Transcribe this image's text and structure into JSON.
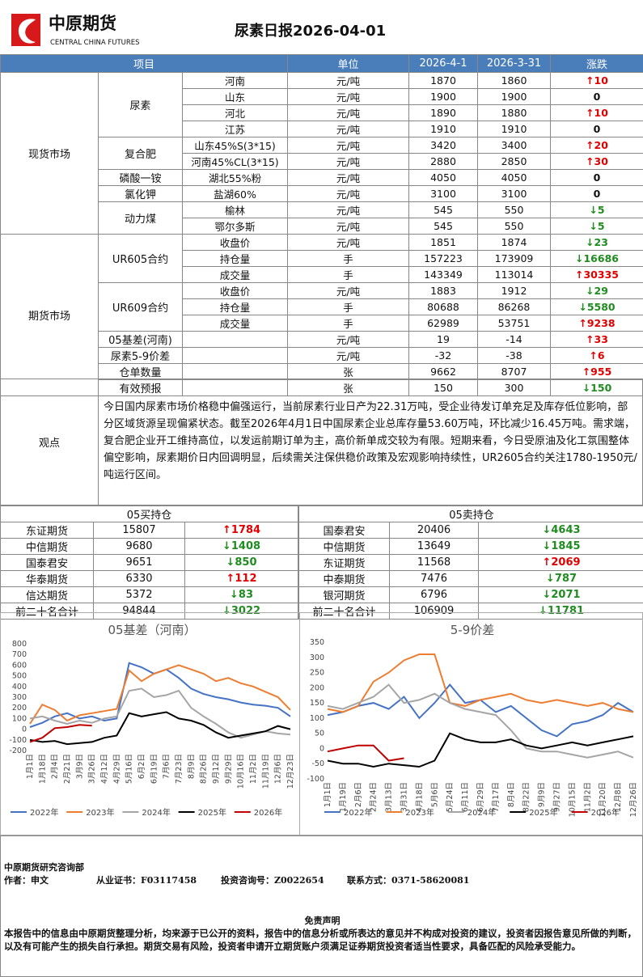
{
  "header": {
    "logo_cn": "中原期货",
    "logo_en": "CENTRAL CHINA FUTURES",
    "title": "尿素日报2026-04-01"
  },
  "table": {
    "columns": [
      "项目",
      "单位",
      "2026-4-1",
      "2026-3-31",
      "涨跌"
    ],
    "sections": [
      {
        "label": "现货市场",
        "groups": [
          {
            "label": "尿素",
            "rows": [
              {
                "item": "河南",
                "unit": "元/吨",
                "d1": 1870,
                "d2": 1860,
                "chg": "↑10"
              },
              {
                "item": "山东",
                "unit": "元/吨",
                "d1": 1900,
                "d2": 1900,
                "chg": 0
              },
              {
                "item": "河北",
                "unit": "元/吨",
                "d1": 1890,
                "d2": 1880,
                "chg": "↑10"
              },
              {
                "item": "江苏",
                "unit": "元/吨",
                "d1": 1910,
                "d2": 1910,
                "chg": 0
              }
            ]
          },
          {
            "label": "复合肥",
            "rows": [
              {
                "item": "山东45%S(3*15)",
                "unit": "元/吨",
                "d1": 3420,
                "d2": 3400,
                "chg": "↑20"
              },
              {
                "item": "河南45%CL(3*15)",
                "unit": "元/吨",
                "d1": 2880,
                "d2": 2850,
                "chg": "↑30"
              }
            ]
          },
          {
            "label": "磷酸一铵",
            "rows": [
              {
                "item": "湖北55%粉",
                "unit": "元/吨",
                "d1": 4050,
                "d2": 4050,
                "chg": 0
              }
            ]
          },
          {
            "label": "氯化钾",
            "rows": [
              {
                "item": "盐湖60%",
                "unit": "元/吨",
                "d1": 3100,
                "d2": 3100,
                "chg": 0
              }
            ]
          },
          {
            "label": "动力煤",
            "rows": [
              {
                "item": "榆林",
                "unit": "元/吨",
                "d1": 545,
                "d2": 550,
                "chg": "↓5"
              },
              {
                "item": "鄂尔多斯",
                "unit": "元/吨",
                "d1": 545,
                "d2": 550,
                "chg": "↓5"
              }
            ]
          }
        ]
      },
      {
        "label": "期货市场",
        "groups": [
          {
            "label": "UR605合约",
            "rows": [
              {
                "item": "收盘价",
                "unit": "元/吨",
                "d1": 1851,
                "d2": 1874,
                "chg": "↓23"
              },
              {
                "item": "持仓量",
                "unit": "手",
                "d1": 157223,
                "d2": 173909,
                "chg": "↓16686"
              },
              {
                "item": "成交量",
                "unit": "手",
                "d1": 143349,
                "d2": 113014,
                "chg": "↑30335"
              }
            ]
          },
          {
            "label": "UR609合约",
            "rows": [
              {
                "item": "收盘价",
                "unit": "元/吨",
                "d1": 1883,
                "d2": 1912,
                "chg": "↓29"
              },
              {
                "item": "持仓量",
                "unit": "手",
                "d1": 80688,
                "d2": 86268,
                "chg": "↓5580"
              },
              {
                "item": "成交量",
                "unit": "手",
                "d1": 62989,
                "d2": 53751,
                "chg": "↑9238"
              }
            ]
          },
          {
            "label": "05基差(河南)",
            "rows": [
              {
                "unit": "元/吨",
                "d1": 19,
                "d2": -14,
                "chg": "↑33"
              }
            ]
          },
          {
            "label": "尿素5-9价差",
            "rows": [
              {
                "unit": "元/吨",
                "d1": -32,
                "d2": -38,
                "chg": "↑6"
              }
            ]
          },
          {
            "label": "仓单数量",
            "rows": [
              {
                "unit": "张",
                "d1": 9662,
                "d2": 8707,
                "chg": "↑955"
              }
            ]
          },
          {
            "label": "有效预报",
            "rows": [
              {
                "unit": "张",
                "d1": 150,
                "d2": 300,
                "chg": "↓150"
              }
            ]
          }
        ]
      }
    ]
  },
  "viewpoint": {
    "label": "观点",
    "text": "今日国内尿素市场价格稳中偏强运行，当前尿素行业日产为22.31万吨，受企业待发订单充足及库存低位影响，部分区域货源呈现偏紧状态。截至2026年4月1日中国尿素企业总库存量53.60万吨，环比减少16.45万吨。需求端，复合肥企业开工维持高位，以发运前期订单为主，高价新单成交较为有限。短期来看，今日受原油及化工氛围整体偏空影响，尿素期价日内回调明显，后续需关注保供稳价政策及宏观影响持续性，UR2605合约关注1780-1950元/吨运行区间。"
  },
  "positions": [
    {
      "title": "05买持仓",
      "rows": [
        {
          "name": "东证期货",
          "value": 15807,
          "chg": "↑1784"
        },
        {
          "name": "中信期货",
          "value": 9680,
          "chg": "↓1408"
        },
        {
          "name": "国泰君安",
          "value": 9651,
          "chg": "↓850"
        },
        {
          "name": "华泰期货",
          "value": 6330,
          "chg": "↑112"
        },
        {
          "name": "信达期货",
          "value": 5372,
          "chg": "↓83"
        },
        {
          "name": "前二十名合计",
          "value": 94844,
          "chg": "↓3022"
        }
      ]
    },
    {
      "title": "05卖持仓",
      "rows": [
        {
          "name": "国泰君安",
          "value": 20406,
          "chg": "↓4643"
        },
        {
          "name": "中信期货",
          "value": 13649,
          "chg": "↓1845"
        },
        {
          "name": "东证期货",
          "value": 11568,
          "chg": "↑2069"
        },
        {
          "name": "中泰期货",
          "value": 7476,
          "chg": "↓787"
        },
        {
          "name": "银河期货",
          "value": 6796,
          "chg": "↓2071"
        },
        {
          "name": "前二十名合计",
          "value": 106909,
          "chg": "↓11781"
        }
      ]
    }
  ],
  "chart_data": [
    {
      "type": "line",
      "title": "05基差（河南）",
      "grid": false,
      "categories": [
        "1月1日",
        "1月18日",
        "2月4日",
        "2月21日",
        "3月9日",
        "3月26日",
        "4月12日",
        "4月29日",
        "5月16日",
        "6月2日",
        "6月19日",
        "7月6日",
        "7月23日",
        "8月9日",
        "8月26日",
        "9月12日",
        "9月29日",
        "10月16日",
        "11月2日",
        "11月19日",
        "12月6日",
        "12月23日"
      ],
      "ylim": [
        -200,
        800
      ],
      "yticks": [
        -200,
        -100,
        0,
        100,
        200,
        300,
        400,
        500,
        600,
        700,
        800
      ],
      "series": [
        {
          "name": "2022年",
          "color": "#4472c4",
          "values": [
            20,
            60,
            120,
            150,
            100,
            120,
            80,
            100,
            620,
            580,
            520,
            560,
            480,
            380,
            330,
            300,
            280,
            250,
            230,
            220,
            200,
            120
          ]
        },
        {
          "name": "2023年",
          "color": "#ed7d31",
          "values": [
            50,
            230,
            180,
            80,
            130,
            150,
            170,
            190,
            550,
            450,
            520,
            560,
            600,
            560,
            520,
            450,
            480,
            430,
            400,
            350,
            300,
            180
          ]
        },
        {
          "name": "2024年",
          "color": "#a5a5a5",
          "values": [
            100,
            120,
            80,
            50,
            80,
            60,
            100,
            120,
            360,
            380,
            300,
            320,
            360,
            200,
            120,
            50,
            -30,
            -80,
            -50,
            -20,
            -40,
            -50
          ]
        },
        {
          "name": "2025年",
          "color": "#000000",
          "values": [
            -100,
            -120,
            -110,
            -140,
            -130,
            -120,
            -80,
            -60,
            150,
            120,
            140,
            160,
            100,
            80,
            40,
            -30,
            -80,
            -60,
            -40,
            -20,
            30,
            0
          ]
        },
        {
          "name": "2026年",
          "color": "#c00000",
          "values": [
            -120,
            -80,
            10,
            20,
            40,
            33,
            null,
            null,
            null,
            null,
            null,
            null,
            null,
            null,
            null,
            null,
            null,
            null,
            null,
            null,
            null,
            null
          ]
        }
      ]
    },
    {
      "type": "line",
      "title": "5-9价差",
      "grid": false,
      "categories": [
        "1月1日",
        "1月19日",
        "2月6日",
        "2月24日",
        "3月13日",
        "3月31日",
        "4月18日",
        "5月6日",
        "5月24日",
        "6月11日",
        "6月29日",
        "7月17日",
        "8月4日",
        "8月22日",
        "9月9日",
        "9月27日",
        "10月15日",
        "11月2日",
        "11月20日",
        "12月8日",
        "12月26日"
      ],
      "ylim": [
        -100,
        350
      ],
      "yticks": [
        -100,
        -50,
        0,
        50,
        100,
        150,
        200,
        250,
        300,
        350
      ],
      "series": [
        {
          "name": "2022年",
          "color": "#4472c4",
          "values": [
            110,
            120,
            140,
            150,
            130,
            170,
            100,
            150,
            210,
            150,
            160,
            120,
            140,
            100,
            60,
            40,
            80,
            90,
            110,
            150,
            120
          ]
        },
        {
          "name": "2023年",
          "color": "#ed7d31",
          "values": [
            130,
            120,
            140,
            220,
            250,
            290,
            310,
            310,
            150,
            140,
            160,
            170,
            180,
            160,
            150,
            160,
            150,
            140,
            150,
            130,
            120
          ]
        },
        {
          "name": "2024年",
          "color": "#a5a5a5",
          "values": [
            140,
            130,
            150,
            170,
            210,
            150,
            160,
            180,
            150,
            130,
            120,
            110,
            60,
            0,
            -10,
            -10,
            -20,
            -30,
            -20,
            -10,
            -30
          ]
        },
        {
          "name": "2025年",
          "color": "#000000",
          "values": [
            -40,
            -50,
            -50,
            -60,
            -50,
            -55,
            -60,
            -40,
            50,
            30,
            20,
            20,
            30,
            10,
            0,
            10,
            20,
            10,
            20,
            30,
            40
          ]
        },
        {
          "name": "2026年",
          "color": "#c00000",
          "values": [
            -10,
            0,
            10,
            10,
            -40,
            -32,
            null,
            null,
            null,
            null,
            null,
            null,
            null,
            null,
            null,
            null,
            null,
            null,
            null,
            null,
            null
          ]
        }
      ]
    }
  ],
  "footer": {
    "dept": "中原期货研究咨询部",
    "author": "作者：申文",
    "cert": "从业证书：F03117458",
    "consult": "投资咨询号：Z0022654",
    "contact": "联系方式：0371-58620081",
    "disclaimer_title": "免责声明",
    "disclaimer": "本报告中的信息由中原期货整理分析，均来源于已公开的资料，报告中的信息分析或所表达的意见并不构成对投资的建议，投资者因报告意见所做的判断，以及有可能产生的损失自行承担。期货交易有风险，投资者申请开立期货账户须满足证券期货投资者适当性要求，具备匹配的风险承受能力。"
  }
}
